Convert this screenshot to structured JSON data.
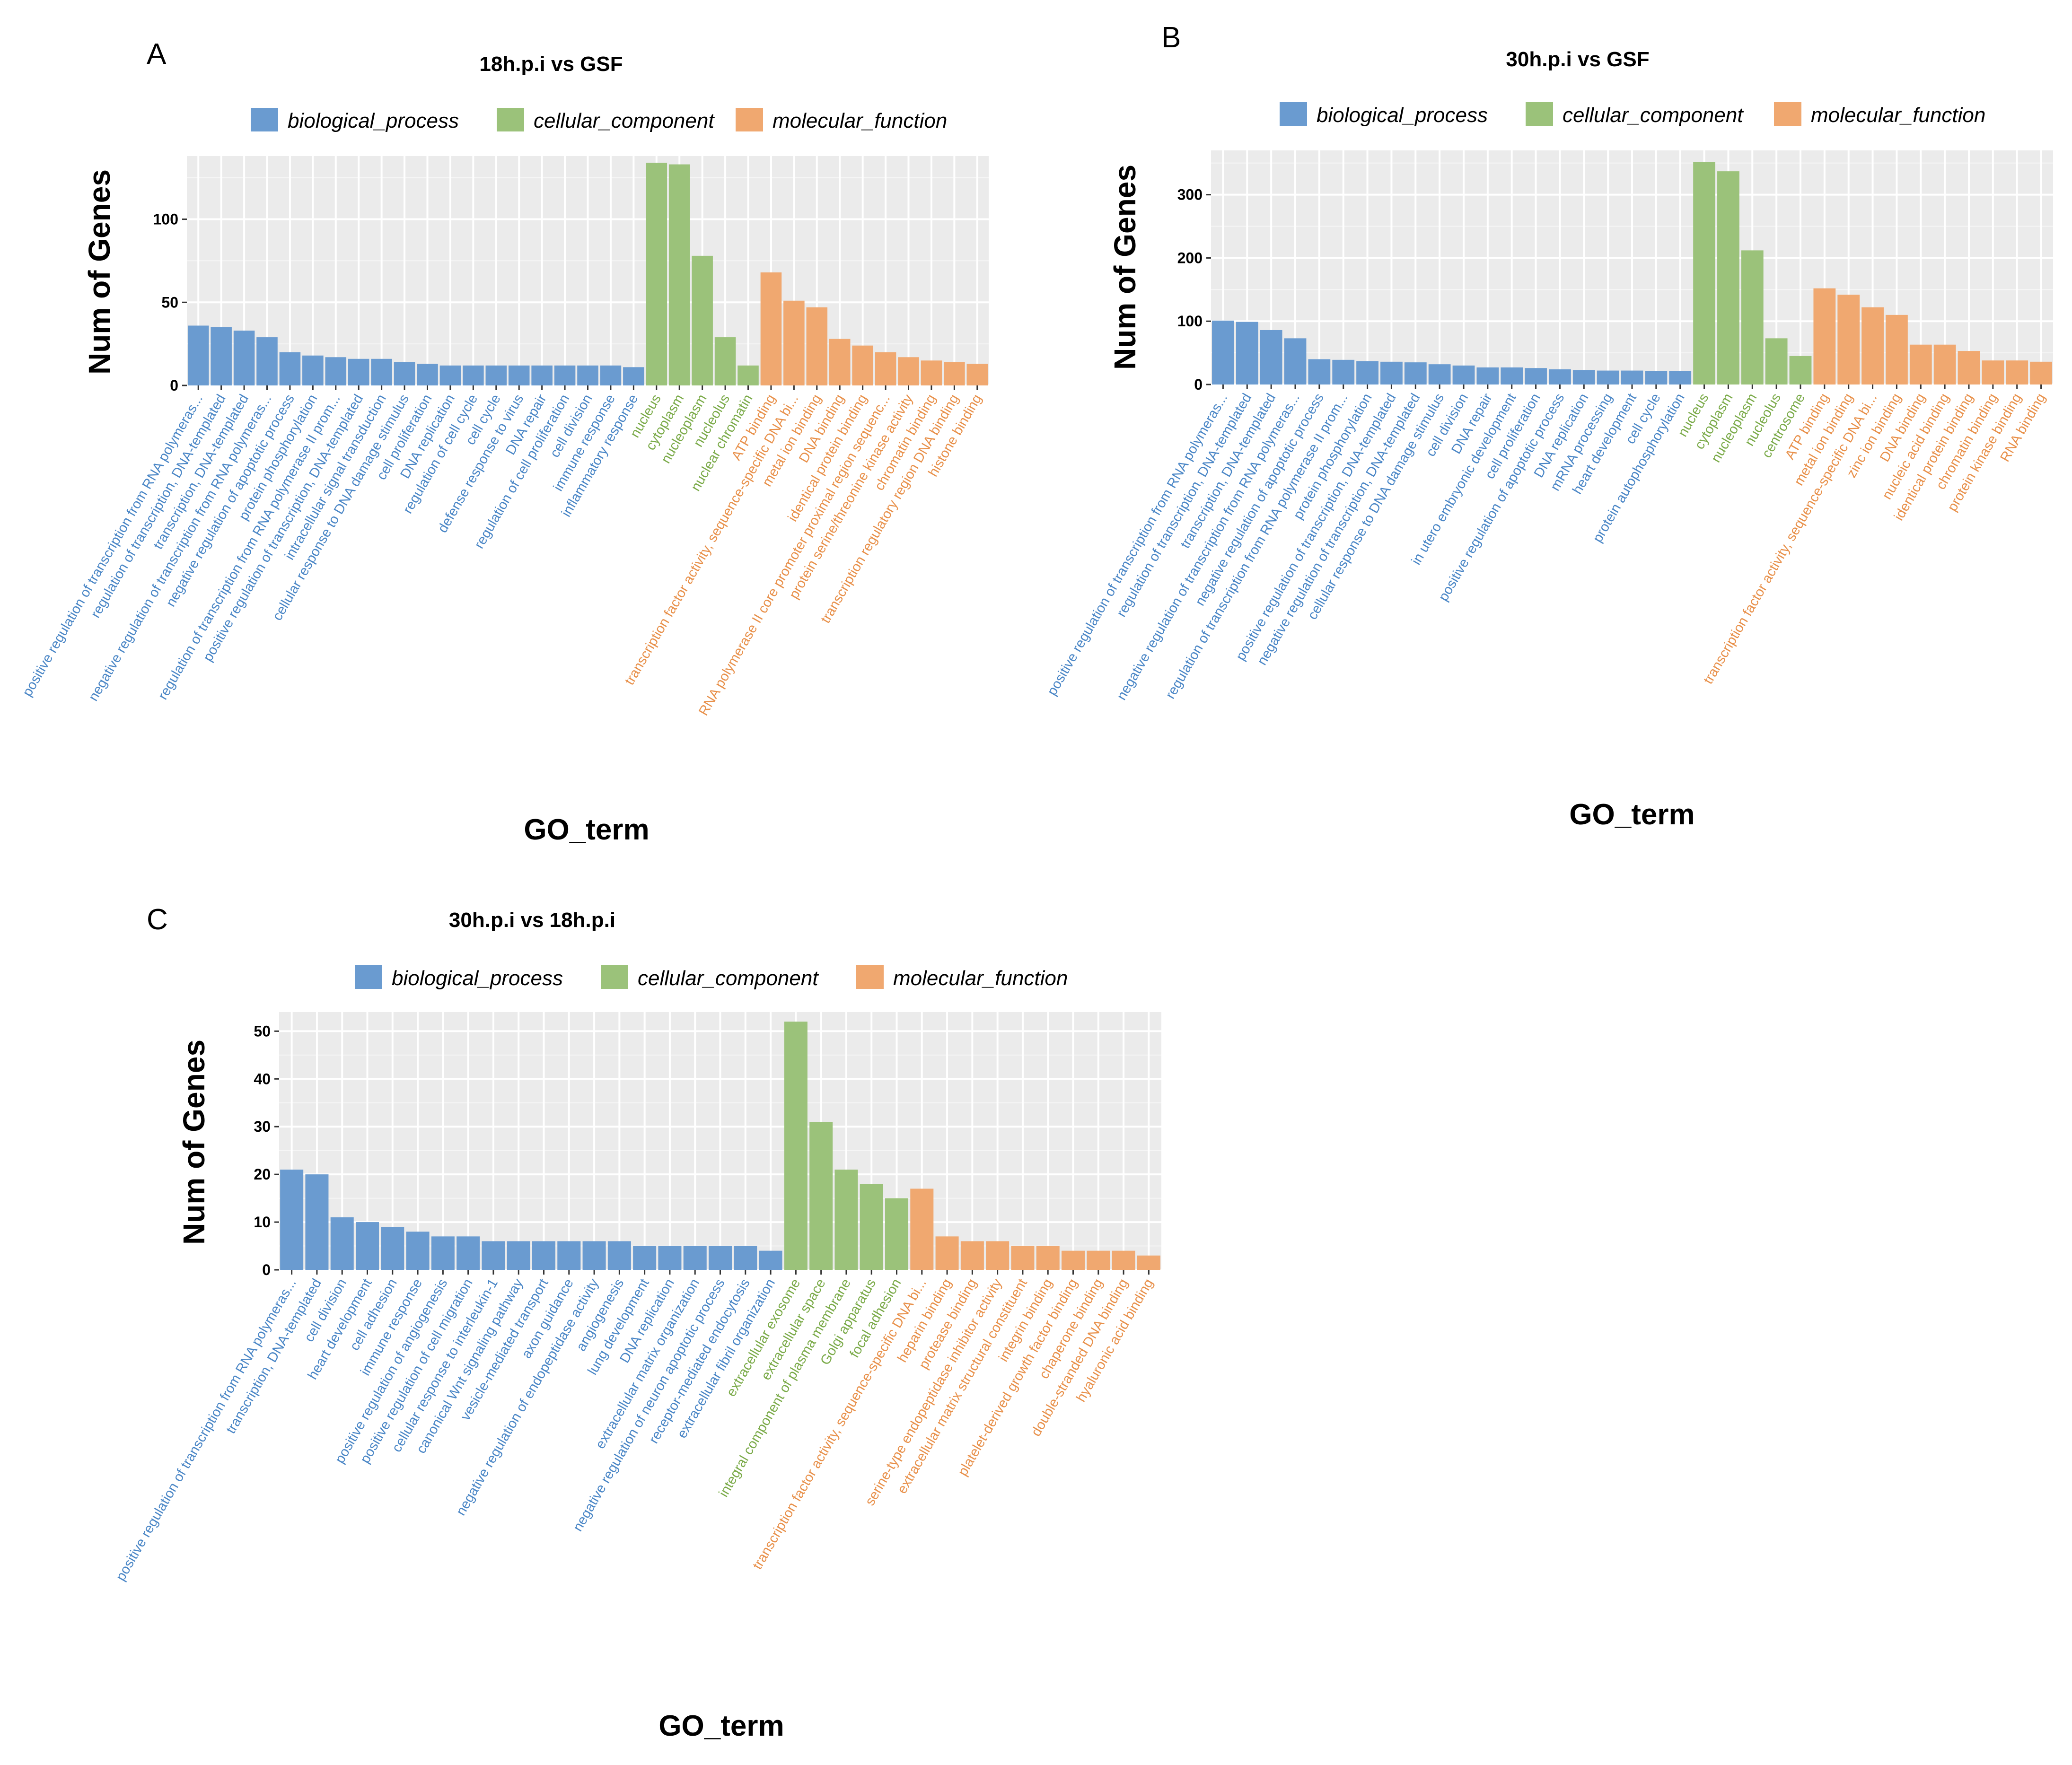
{
  "colors": {
    "biological_process": "#6a9bd0",
    "cellular_component": "#9bc27a",
    "molecular_function": "#f0a870",
    "biological_process_label": "#4a86c6",
    "cellular_component_label": "#7aaa48",
    "molecular_function_label": "#e8904a",
    "panel_bg": "#ebebeb",
    "grid": "#ffffff"
  },
  "chart_data": [
    {
      "panel": "A",
      "type": "bar",
      "title": "18h.p.i vs GSF",
      "xlabel": "GO_term",
      "ylabel": "Num of Genes",
      "ylim": [
        0,
        138
      ],
      "yticks": [
        0,
        50,
        100
      ],
      "legend": [
        "biological_process",
        "cellular_component",
        "molecular_function"
      ],
      "categories": [
        "positive regulation of transcription from RNA polymeras...",
        "regulation of transcription, DNA-templated",
        "transcription, DNA-templated",
        "negative regulation of transcription from RNA polymeras...",
        "negative regulation of apoptotic process",
        "protein phosphorylation",
        "regulation of transcription from RNA polymerase II prom...",
        "positive regulation of transcription, DNA-templated",
        "intracellular signal transduction",
        "cellular response to DNA damage stimulus",
        "cell proliferation",
        "DNA replication",
        "regulation of cell cycle",
        "cell cycle",
        "defense response to virus",
        "DNA repair",
        "regulation of cell proliferation",
        "cell division",
        "immune response",
        "inflammatory response",
        "nucleus",
        "cytoplasm",
        "nucleoplasm",
        "nucleolus",
        "nuclear chromatin",
        "ATP binding",
        "transcription factor activity, sequence-specific DNA bi...",
        "metal ion binding",
        "DNA binding",
        "identical protein binding",
        "RNA polymerase II core promoter proximal region sequenc...",
        "protein serine/threonine kinase activity",
        "chromatin binding",
        "transcription regulatory region DNA binding",
        "histone binding"
      ],
      "values": [
        36,
        35,
        33,
        29,
        20,
        18,
        17,
        16,
        16,
        14,
        13,
        12,
        12,
        12,
        12,
        12,
        12,
        12,
        12,
        11,
        134,
        133,
        78,
        29,
        12,
        68,
        51,
        47,
        28,
        24,
        20,
        17,
        15,
        14,
        13
      ],
      "groups": [
        "bp",
        "bp",
        "bp",
        "bp",
        "bp",
        "bp",
        "bp",
        "bp",
        "bp",
        "bp",
        "bp",
        "bp",
        "bp",
        "bp",
        "bp",
        "bp",
        "bp",
        "bp",
        "bp",
        "bp",
        "cc",
        "cc",
        "cc",
        "cc",
        "cc",
        "mf",
        "mf",
        "mf",
        "mf",
        "mf",
        "mf",
        "mf",
        "mf",
        "mf",
        "mf"
      ]
    },
    {
      "panel": "B",
      "type": "bar",
      "title": "30h.p.i vs GSF",
      "xlabel": "GO_term",
      "ylabel": "Num of Genes",
      "ylim": [
        0,
        370
      ],
      "yticks": [
        0,
        100,
        200,
        300
      ],
      "legend": [
        "biological_process",
        "cellular_component",
        "molecular_function"
      ],
      "categories": [
        "positive regulation of transcription from RNA polymeras...",
        "regulation of transcription, DNA-templated",
        "transcription, DNA-templated",
        "negative regulation of transcription from RNA polymeras...",
        "negative regulation of apoptotic process",
        "regulation of transcription from RNA polymerase II prom...",
        "protein phosphorylation",
        "positive regulation of transcription, DNA-templated",
        "negative regulation of transcription, DNA-templated",
        "cellular response to DNA damage stimulus",
        "cell division",
        "DNA repair",
        "in utero embryonic development",
        "cell proliferation",
        "positive regulation of apoptotic process",
        "DNA replication",
        "mRNA processing",
        "heart development",
        "cell cycle",
        "protein autophosphorylation",
        "nucleus",
        "cytoplasm",
        "nucleoplasm",
        "nucleolus",
        "centrosome",
        "ATP binding",
        "metal ion binding",
        "transcription factor activity, sequence-specific DNA bi...",
        "zinc ion binding",
        "DNA binding",
        "nucleic acid binding",
        "identical protein binding",
        "chromatin binding",
        "protein kinase binding",
        "RNA binding"
      ],
      "values": [
        101,
        99,
        86,
        73,
        40,
        39,
        37,
        36,
        35,
        32,
        30,
        27,
        27,
        26,
        24,
        23,
        22,
        22,
        21,
        21,
        352,
        337,
        212,
        73,
        45,
        152,
        142,
        122,
        110,
        63,
        63,
        53,
        38,
        38,
        36
      ],
      "groups": [
        "bp",
        "bp",
        "bp",
        "bp",
        "bp",
        "bp",
        "bp",
        "bp",
        "bp",
        "bp",
        "bp",
        "bp",
        "bp",
        "bp",
        "bp",
        "bp",
        "bp",
        "bp",
        "bp",
        "bp",
        "cc",
        "cc",
        "cc",
        "cc",
        "cc",
        "mf",
        "mf",
        "mf",
        "mf",
        "mf",
        "mf",
        "mf",
        "mf",
        "mf",
        "mf"
      ]
    },
    {
      "panel": "C",
      "type": "bar",
      "title": "30h.p.i vs 18h.p.i",
      "xlabel": "GO_term",
      "ylabel": "Num of Genes",
      "ylim": [
        0,
        54
      ],
      "yticks": [
        0,
        10,
        20,
        30,
        40,
        50
      ],
      "legend": [
        "biological_process",
        "cellular_component",
        "molecular_function"
      ],
      "categories": [
        "positive regulation of transcription from RNA polymeras...",
        "transcription, DNA-templated",
        "cell division",
        "heart development",
        "cell adhesion",
        "immune response",
        "positive regulation of angiogenesis",
        "positive regulation of cell migration",
        "cellular response to interleukin-1",
        "canonical Wnt signaling pathway",
        "vesicle-mediated transport",
        "axon guidance",
        "negative regulation of endopeptidase activity",
        "angiogenesis",
        "lung development",
        "DNA replication",
        "extracellular matrix organization",
        "negative regulation of neuron apoptotic process",
        "receptor-mediated endocytosis",
        "extracellular fibril organization",
        "extracellular exosome",
        "extracellular space",
        "integral component of plasma membrane",
        "Golgi apparatus",
        "focal adhesion",
        "transcription factor activity, sequence-specific DNA bi...",
        "heparin binding",
        "protease binding",
        "serine-type endopeptidase inhibitor activity",
        "extracellular matrix structural constituent",
        "integrin binding",
        "platelet-derived growth factor binding",
        "chaperone binding",
        "double-stranded DNA binding",
        "hyaluronic acid binding"
      ],
      "values": [
        21,
        20,
        11,
        10,
        9,
        8,
        7,
        7,
        6,
        6,
        6,
        6,
        6,
        6,
        5,
        5,
        5,
        5,
        5,
        4,
        52,
        31,
        21,
        18,
        15,
        17,
        7,
        6,
        6,
        5,
        5,
        4,
        4,
        4,
        3
      ],
      "groups": [
        "bp",
        "bp",
        "bp",
        "bp",
        "bp",
        "bp",
        "bp",
        "bp",
        "bp",
        "bp",
        "bp",
        "bp",
        "bp",
        "bp",
        "bp",
        "bp",
        "bp",
        "bp",
        "bp",
        "bp",
        "cc",
        "cc",
        "cc",
        "cc",
        "cc",
        "mf",
        "mf",
        "mf",
        "mf",
        "mf",
        "mf",
        "mf",
        "mf",
        "mf",
        "mf"
      ]
    }
  ]
}
